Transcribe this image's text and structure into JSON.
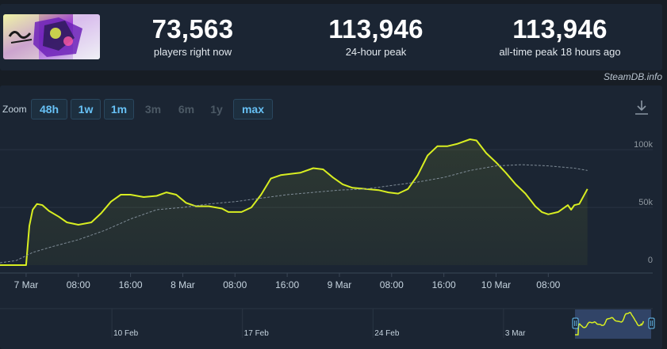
{
  "stats": {
    "current": {
      "value": "73,563",
      "label": "players right now"
    },
    "peak24": {
      "value": "113,946",
      "label": "24-hour peak"
    },
    "alltime": {
      "value": "113,946",
      "label": "all-time peak 18 hours ago"
    }
  },
  "attribution": "SteamDB.info",
  "zoom": {
    "label": "Zoom",
    "options": [
      {
        "label": "48h",
        "enabled": true
      },
      {
        "label": "1w",
        "enabled": true
      },
      {
        "label": "1m",
        "enabled": true
      },
      {
        "label": "3m",
        "enabled": false
      },
      {
        "label": "6m",
        "enabled": false
      },
      {
        "label": "1y",
        "enabled": false
      },
      {
        "label": "max",
        "enabled": true
      }
    ]
  },
  "colors": {
    "line": "#d8ee21",
    "trend": "#7f8c97",
    "background": "#1b2533",
    "accent": "#67c1f5"
  },
  "chart_data": {
    "type": "line",
    "xlabel": "",
    "ylabel": "",
    "ylim": [
      0,
      120000
    ],
    "xlim": [
      "2025-03-06T20:00",
      "2025-03-11T00:00"
    ],
    "y_ticks": [
      {
        "value": 0,
        "label": "0"
      },
      {
        "value": 50000,
        "label": "50k"
      },
      {
        "value": 100000,
        "label": "100k"
      }
    ],
    "x_ticks": [
      {
        "t": "2025-03-07T00:00",
        "label": "7 Mar"
      },
      {
        "t": "2025-03-07T08:00",
        "label": "08:00"
      },
      {
        "t": "2025-03-07T16:00",
        "label": "16:00"
      },
      {
        "t": "2025-03-08T00:00",
        "label": "8 Mar"
      },
      {
        "t": "2025-03-08T08:00",
        "label": "08:00"
      },
      {
        "t": "2025-03-08T16:00",
        "label": "16:00"
      },
      {
        "t": "2025-03-09T00:00",
        "label": "9 Mar"
      },
      {
        "t": "2025-03-09T08:00",
        "label": "08:00"
      },
      {
        "t": "2025-03-09T16:00",
        "label": "16:00"
      },
      {
        "t": "2025-03-10T00:00",
        "label": "10 Mar"
      },
      {
        "t": "2025-03-10T08:00",
        "label": "08:00"
      }
    ],
    "series": [
      {
        "style": "solid",
        "points": [
          [
            "2025-03-06T20:00",
            0
          ],
          [
            "2025-03-07T00:00",
            0
          ],
          [
            "2025-03-07T00:30",
            34000
          ],
          [
            "2025-03-07T01:00",
            48000
          ],
          [
            "2025-03-07T01:40",
            53000
          ],
          [
            "2025-03-07T02:30",
            52000
          ],
          [
            "2025-03-07T03:30",
            47000
          ],
          [
            "2025-03-07T05:00",
            42000
          ],
          [
            "2025-03-07T06:15",
            37000
          ],
          [
            "2025-03-07T08:00",
            35000
          ],
          [
            "2025-03-07T10:00",
            37000
          ],
          [
            "2025-03-07T11:30",
            45000
          ],
          [
            "2025-03-07T13:00",
            55000
          ],
          [
            "2025-03-07T14:30",
            61000
          ],
          [
            "2025-03-07T16:00",
            61000
          ],
          [
            "2025-03-07T18:00",
            59000
          ],
          [
            "2025-03-07T20:00",
            60000
          ],
          [
            "2025-03-07T21:30",
            63000
          ],
          [
            "2025-03-07T23:00",
            61000
          ],
          [
            "2025-03-08T00:30",
            54000
          ],
          [
            "2025-03-08T02:00",
            51000
          ],
          [
            "2025-03-08T04:00",
            51000
          ],
          [
            "2025-03-08T06:00",
            49000
          ],
          [
            "2025-03-08T07:00",
            46000
          ],
          [
            "2025-03-08T09:00",
            46000
          ],
          [
            "2025-03-08T10:30",
            50000
          ],
          [
            "2025-03-08T12:00",
            61000
          ],
          [
            "2025-03-08T13:30",
            75000
          ],
          [
            "2025-03-08T15:00",
            78000
          ],
          [
            "2025-03-08T16:30",
            79000
          ],
          [
            "2025-03-08T18:00",
            80000
          ],
          [
            "2025-03-08T20:00",
            84000
          ],
          [
            "2025-03-08T21:30",
            83000
          ],
          [
            "2025-03-08T23:00",
            76000
          ],
          [
            "2025-03-09T00:30",
            70000
          ],
          [
            "2025-03-09T02:00",
            67000
          ],
          [
            "2025-03-09T04:00",
            66000
          ],
          [
            "2025-03-09T06:00",
            65000
          ],
          [
            "2025-03-09T07:30",
            63000
          ],
          [
            "2025-03-09T09:00",
            62000
          ],
          [
            "2025-03-09T10:30",
            66000
          ],
          [
            "2025-03-09T12:00",
            78000
          ],
          [
            "2025-03-09T13:30",
            95000
          ],
          [
            "2025-03-09T15:00",
            103000
          ],
          [
            "2025-03-09T16:30",
            103000
          ],
          [
            "2025-03-09T18:00",
            105000
          ],
          [
            "2025-03-09T20:00",
            109000
          ],
          [
            "2025-03-09T21:00",
            108000
          ],
          [
            "2025-03-09T22:30",
            97000
          ],
          [
            "2025-03-10T00:00",
            89000
          ],
          [
            "2025-03-10T01:30",
            80000
          ],
          [
            "2025-03-10T03:00",
            70000
          ],
          [
            "2025-03-10T04:30",
            62000
          ],
          [
            "2025-03-10T06:00",
            51000
          ],
          [
            "2025-03-10T07:00",
            46000
          ],
          [
            "2025-03-10T08:00",
            44000
          ],
          [
            "2025-03-10T09:30",
            46000
          ],
          [
            "2025-03-10T11:00",
            52000
          ],
          [
            "2025-03-10T11:30",
            48000
          ],
          [
            "2025-03-10T12:00",
            52000
          ],
          [
            "2025-03-10T12:45",
            53000
          ],
          [
            "2025-03-10T14:00",
            66000
          ]
        ]
      },
      {
        "style": "dashed",
        "points": [
          [
            "2025-03-06T20:00",
            2000
          ],
          [
            "2025-03-06T22:30",
            4000
          ],
          [
            "2025-03-07T01:00",
            11000
          ],
          [
            "2025-03-07T04:00",
            16000
          ],
          [
            "2025-03-07T08:00",
            22000
          ],
          [
            "2025-03-07T12:00",
            30000
          ],
          [
            "2025-03-07T16:00",
            40000
          ],
          [
            "2025-03-07T20:00",
            48000
          ],
          [
            "2025-03-08T00:00",
            50000
          ],
          [
            "2025-03-08T04:00",
            53000
          ],
          [
            "2025-03-08T08:00",
            55000
          ],
          [
            "2025-03-08T12:00",
            58000
          ],
          [
            "2025-03-08T16:00",
            61000
          ],
          [
            "2025-03-08T20:00",
            63000
          ],
          [
            "2025-03-09T00:00",
            65000
          ],
          [
            "2025-03-09T04:00",
            66000
          ],
          [
            "2025-03-09T08:00",
            69000
          ],
          [
            "2025-03-09T12:00",
            72000
          ],
          [
            "2025-03-09T16:00",
            76000
          ],
          [
            "2025-03-09T20:00",
            82000
          ],
          [
            "2025-03-10T00:00",
            86000
          ],
          [
            "2025-03-10T04:00",
            87000
          ],
          [
            "2025-03-10T08:00",
            86000
          ],
          [
            "2025-03-10T12:00",
            84000
          ],
          [
            "2025-03-10T14:00",
            82000
          ]
        ]
      }
    ]
  },
  "navigator": {
    "xlim": [
      "2025-02-04T00:00",
      "2025-03-11T00:00"
    ],
    "ticks": [
      {
        "t": "2025-02-10T00:00",
        "label": "10 Feb"
      },
      {
        "t": "2025-02-17T00:00",
        "label": "17 Feb"
      },
      {
        "t": "2025-02-24T00:00",
        "label": "24 Feb"
      },
      {
        "t": "2025-03-03T00:00",
        "label": "3 Mar"
      }
    ],
    "selection": [
      "2025-03-06T20:00",
      "2025-03-11T00:00"
    ]
  }
}
